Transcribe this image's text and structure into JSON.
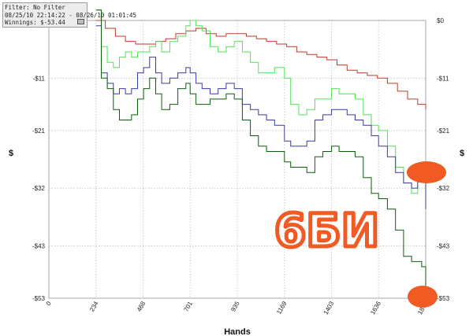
{
  "info": {
    "filter": "Filter: No Filter",
    "dates": "08/25/10 22:14:22 - 08/26/10 01:01:45",
    "winnings": "Winnings: $-53.44"
  },
  "annotation_text": "6БИ",
  "colors": {
    "background": "#ffffff",
    "grid": "#b8b8b8",
    "annotation": "#f15a22",
    "series_red": "#c23a2a",
    "series_light_green": "#55e055",
    "series_blue": "#3a3aa6",
    "series_dark_green": "#0b5e0b"
  },
  "chart_data": {
    "type": "line",
    "xlabel": "Hands",
    "ylabel": "$",
    "x_ticks": [
      "0",
      "234",
      "468",
      "701",
      "935",
      "1169",
      "1403",
      "1636",
      "1870"
    ],
    "y_ticks": [
      "$0",
      "-$11",
      "-$21",
      "-$32",
      "-$43",
      "-$53"
    ],
    "xlim": [
      0,
      1870
    ],
    "ylim": [
      -53,
      0
    ],
    "grid": true,
    "series": [
      {
        "color": "#c23a2a",
        "x": [
          234,
          280,
          330,
          380,
          430,
          480,
          530,
          580,
          630,
          680,
          730,
          780,
          830,
          880,
          930,
          980,
          1030,
          1080,
          1130,
          1180,
          1230,
          1280,
          1330,
          1380,
          1430,
          1480,
          1530,
          1580,
          1630,
          1680,
          1730,
          1780,
          1830,
          1870
        ],
        "y": [
          0,
          -1.5,
          -3,
          -4,
          -4.5,
          -4.5,
          -4,
          -3.5,
          -2.5,
          -2,
          -1.5,
          -2.5,
          -3,
          -2.5,
          -2.5,
          -3,
          -3.5,
          -4,
          -4.5,
          -5,
          -6,
          -6.5,
          -7,
          -7.5,
          -8.5,
          -9.5,
          -10,
          -10.5,
          -11,
          -12,
          -13.5,
          -15,
          -16,
          -17
        ]
      },
      {
        "color": "#55e055",
        "x": [
          234,
          260,
          290,
          320,
          350,
          380,
          410,
          440,
          470,
          500,
          530,
          560,
          600,
          640,
          680,
          701,
          730,
          760,
          800,
          840,
          880,
          920,
          960,
          1000,
          1040,
          1080,
          1120,
          1169,
          1200,
          1240,
          1280,
          1320,
          1360,
          1403,
          1440,
          1480,
          1520,
          1560,
          1600,
          1636,
          1680,
          1720,
          1760,
          1800,
          1830,
          1850,
          1870
        ],
        "y": [
          2,
          -5,
          -8,
          -9,
          -7,
          -6,
          -7,
          -6,
          -6,
          -5,
          -4,
          -6,
          -4,
          -3,
          -1,
          0,
          -1,
          -2,
          -5,
          -6,
          -5,
          -4,
          -6,
          -8,
          -10,
          -10,
          -9,
          -11,
          -16,
          -18,
          -17,
          -15,
          -15,
          -13,
          -14,
          -14,
          -15,
          -18,
          -20,
          -21,
          -24,
          -28,
          -31,
          -33,
          -30,
          -28,
          -27
        ]
      },
      {
        "color": "#3a3aa6",
        "x": [
          234,
          260,
          290,
          320,
          350,
          380,
          410,
          440,
          470,
          500,
          530,
          560,
          600,
          640,
          680,
          701,
          730,
          760,
          800,
          840,
          880,
          920,
          960,
          1000,
          1040,
          1080,
          1120,
          1169,
          1200,
          1240,
          1280,
          1320,
          1360,
          1403,
          1440,
          1480,
          1520,
          1560,
          1600,
          1636,
          1680,
          1720,
          1760,
          1800,
          1830,
          1850,
          1870
        ],
        "y": [
          -1,
          -10,
          -12,
          -14,
          -13,
          -14,
          -13,
          -10,
          -9,
          -7,
          -10,
          -12,
          -11,
          -10,
          -9,
          -10,
          -12,
          -13,
          -14,
          -13,
          -12,
          -13,
          -16,
          -17,
          -18,
          -19,
          -20,
          -23,
          -24,
          -24,
          -23,
          -19,
          -18,
          -17,
          -17,
          -18,
          -19,
          -20,
          -22,
          -24,
          -26,
          -29,
          -31,
          -32,
          -29,
          -28,
          -36
        ]
      },
      {
        "color": "#0b5e0b",
        "x": [
          234,
          260,
          290,
          320,
          350,
          380,
          410,
          440,
          470,
          500,
          530,
          560,
          600,
          640,
          680,
          701,
          730,
          760,
          800,
          840,
          880,
          920,
          960,
          1000,
          1040,
          1080,
          1120,
          1169,
          1200,
          1240,
          1280,
          1320,
          1360,
          1403,
          1440,
          1480,
          1520,
          1560,
          1600,
          1636,
          1680,
          1720,
          1760,
          1800,
          1830,
          1850,
          1870
        ],
        "y": [
          2,
          -11,
          -13,
          -17,
          -19,
          -19,
          -18,
          -15,
          -13,
          -11,
          -14,
          -17,
          -16,
          -13,
          -12,
          -14,
          -16,
          -16,
          -15,
          -15,
          -14,
          -15,
          -19,
          -22,
          -24,
          -25,
          -25,
          -27,
          -28,
          -28,
          -29,
          -26,
          -25,
          -24,
          -25,
          -25,
          -26,
          -30,
          -33,
          -34,
          -36,
          -40,
          -45,
          -46,
          -46,
          -47,
          -53
        ]
      }
    ]
  }
}
